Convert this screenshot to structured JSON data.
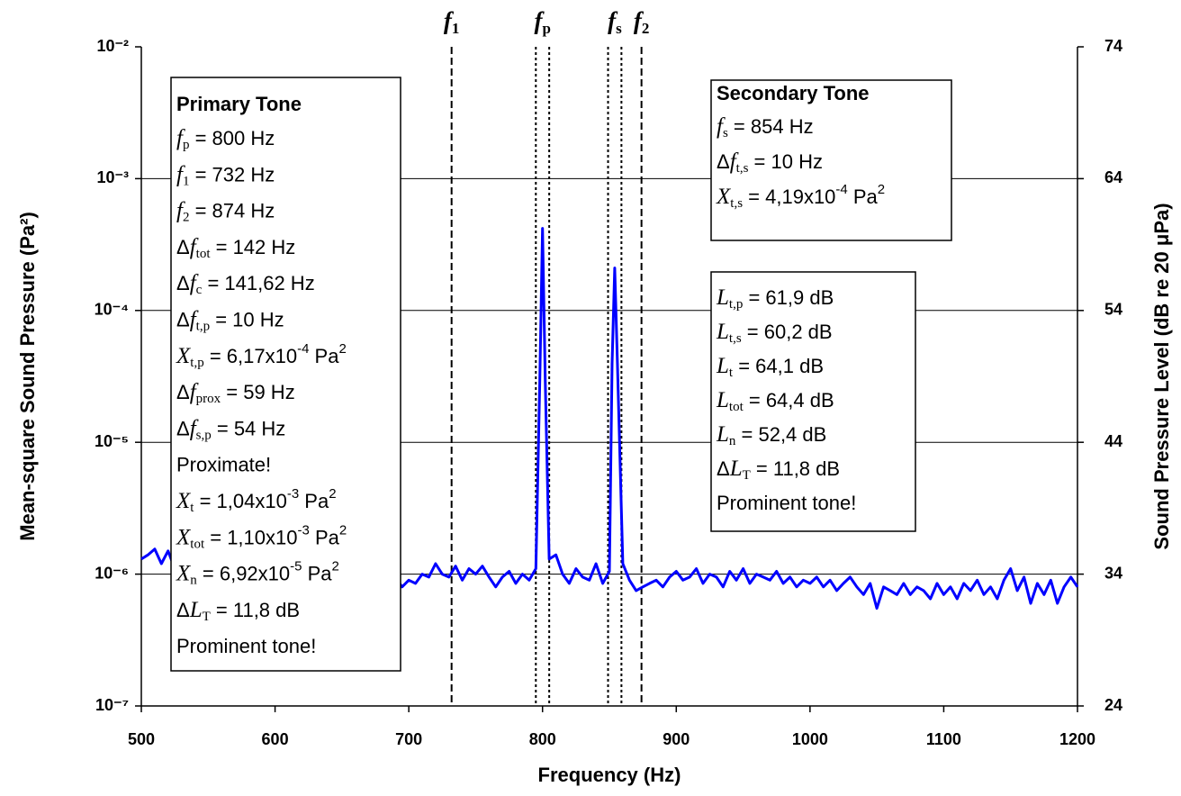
{
  "chart_data": {
    "type": "line",
    "log_scale": true,
    "grid": true,
    "color": "#0000ff",
    "xlabel": "Frequency (Hz)",
    "ylabel": "Mean-square Sound Pressure (Pa²)",
    "y2label": "Sound Pressure Level (dB re 20 μPa)",
    "xlim": [
      500,
      1200
    ],
    "xticks": [
      500,
      600,
      700,
      800,
      900,
      1000,
      1100,
      1200
    ],
    "ylim": [
      1e-07,
      0.01
    ],
    "yticks": [
      {
        "value": 1e-07,
        "label": "10⁻⁷"
      },
      {
        "value": 1e-06,
        "label": "10⁻⁶"
      },
      {
        "value": 1e-05,
        "label": "10⁻⁵"
      },
      {
        "value": 0.0001,
        "label": "10⁻⁴"
      },
      {
        "value": 0.001,
        "label": "10⁻³"
      },
      {
        "value": 0.01,
        "label": "10⁻²"
      }
    ],
    "y2lim": [
      24,
      74
    ],
    "y2ticks": [
      24,
      34,
      44,
      54,
      64,
      74
    ],
    "x": [
      500,
      505,
      510,
      515,
      520,
      525,
      530,
      535,
      540,
      545,
      550,
      555,
      560,
      565,
      570,
      575,
      580,
      585,
      590,
      595,
      600,
      605,
      610,
      615,
      620,
      625,
      630,
      635,
      640,
      645,
      650,
      655,
      660,
      665,
      670,
      675,
      680,
      685,
      690,
      695,
      700,
      705,
      710,
      715,
      720,
      725,
      730,
      735,
      740,
      745,
      750,
      755,
      760,
      765,
      770,
      775,
      780,
      785,
      790,
      795,
      798,
      800,
      802,
      805,
      810,
      815,
      820,
      825,
      830,
      835,
      840,
      845,
      850,
      852,
      854,
      856,
      860,
      865,
      870,
      875,
      880,
      885,
      890,
      895,
      900,
      905,
      910,
      915,
      920,
      925,
      930,
      935,
      940,
      945,
      950,
      955,
      960,
      965,
      970,
      975,
      980,
      985,
      990,
      995,
      1000,
      1005,
      1010,
      1015,
      1020,
      1025,
      1030,
      1035,
      1040,
      1045,
      1050,
      1055,
      1060,
      1065,
      1070,
      1075,
      1080,
      1085,
      1090,
      1095,
      1100,
      1105,
      1110,
      1115,
      1120,
      1125,
      1130,
      1135,
      1140,
      1145,
      1150,
      1155,
      1160,
      1165,
      1170,
      1175,
      1180,
      1185,
      1190,
      1195,
      1200
    ],
    "values": [
      1.3e-06,
      1.4e-06,
      1.55e-06,
      1.2e-06,
      1.5e-06,
      1.1e-06,
      1.25e-06,
      1e-06,
      1.15e-06,
      9.5e-07,
      1.1e-06,
      9e-07,
      1.2e-06,
      1e-06,
      8.5e-07,
      1.1e-06,
      9.5e-07,
      1.2e-06,
      9e-07,
      1.05e-06,
      1e-06,
      1.15e-06,
      9e-07,
      1.1e-06,
      9.5e-07,
      1.2e-06,
      8.5e-07,
      1e-06,
      1.1e-06,
      9e-07,
      1.05e-06,
      9.5e-07,
      1.2e-06,
      9e-07,
      1.1e-06,
      1e-06,
      8.5e-07,
      1.15e-06,
      9.5e-07,
      8e-07,
      9e-07,
      8.5e-07,
      1e-06,
      9.5e-07,
      1.2e-06,
      1e-06,
      9.5e-07,
      1.15e-06,
      9e-07,
      1.1e-06,
      1e-06,
      1.15e-06,
      9.5e-07,
      8e-07,
      9.5e-07,
      1.05e-06,
      8.5e-07,
      1e-06,
      9e-07,
      1.1e-06,
      3e-05,
      0.00042,
      3e-05,
      1.3e-06,
      1.4e-06,
      1e-06,
      8.5e-07,
      1.1e-06,
      9.5e-07,
      9e-07,
      1.2e-06,
      8.5e-07,
      1.05e-06,
      4e-05,
      0.00021,
      4e-05,
      1.2e-06,
      9e-07,
      7.5e-07,
      8e-07,
      8.5e-07,
      9e-07,
      8e-07,
      9.5e-07,
      1.05e-06,
      9e-07,
      9.5e-07,
      1.1e-06,
      8.5e-07,
      1e-06,
      9.5e-07,
      8e-07,
      1.05e-06,
      9e-07,
      1.1e-06,
      8.5e-07,
      1e-06,
      9.5e-07,
      9e-07,
      1.05e-06,
      8.5e-07,
      9.5e-07,
      8e-07,
      9e-07,
      8.5e-07,
      9.5e-07,
      8e-07,
      9e-07,
      7.5e-07,
      8.5e-07,
      9.5e-07,
      8e-07,
      7e-07,
      8.5e-07,
      5.5e-07,
      8e-07,
      7.5e-07,
      7e-07,
      8.5e-07,
      7e-07,
      8e-07,
      7.5e-07,
      6.5e-07,
      8.5e-07,
      7e-07,
      8e-07,
      6.5e-07,
      8.5e-07,
      7.5e-07,
      9e-07,
      7e-07,
      8e-07,
      6.5e-07,
      9e-07,
      1.1e-06,
      7.5e-07,
      9.5e-07,
      6e-07,
      8.5e-07,
      7e-07,
      9e-07,
      6e-07,
      8e-07,
      9.5e-07,
      8e-07
    ],
    "vlines": [
      {
        "x": 732,
        "style": "dashed"
      },
      {
        "x": 795,
        "style": "dotted"
      },
      {
        "x": 805,
        "style": "dotted"
      },
      {
        "x": 849,
        "style": "dotted"
      },
      {
        "x": 859,
        "style": "dotted"
      },
      {
        "x": 874,
        "style": "dashed"
      }
    ],
    "markers": [
      {
        "x": 732,
        "label": [
          {
            "i": "f"
          },
          {
            "sub": "1"
          }
        ]
      },
      {
        "x": 800,
        "label": [
          {
            "i": "f"
          },
          {
            "sub": "p"
          }
        ]
      },
      {
        "x": 854,
        "label": [
          {
            "i": "f"
          },
          {
            "sub": "s"
          }
        ]
      },
      {
        "x": 874,
        "label": [
          {
            "i": "f"
          },
          {
            "sub": "2"
          }
        ]
      }
    ],
    "annotations": [
      {
        "title": "Primary Tone",
        "lines": [
          [
            {
              "i": "f"
            },
            {
              "sub": "p"
            },
            " = 800 Hz"
          ],
          [
            {
              "i": "f"
            },
            {
              "sub": "1"
            },
            " = 732 Hz"
          ],
          [
            {
              "i": "f"
            },
            {
              "sub": "2"
            },
            " = 874 Hz"
          ],
          [
            "Δ",
            {
              "i": "f"
            },
            {
              "sub": "tot"
            },
            " = 142 Hz"
          ],
          [
            "Δ",
            {
              "i": "f"
            },
            {
              "sub": "c"
            },
            " = 141,62 Hz"
          ],
          [
            "Δ",
            {
              "i": "f"
            },
            {
              "sub": "t,p"
            },
            " = 10 Hz"
          ],
          [
            {
              "i": "X"
            },
            {
              "sub": "t,p"
            },
            " = 6,17x10",
            {
              "sup": "-4"
            },
            " Pa",
            {
              "sup": "2"
            }
          ],
          [
            "Δ",
            {
              "i": "f"
            },
            {
              "sub": "prox"
            },
            " = 59 Hz"
          ],
          [
            "Δ",
            {
              "i": "f"
            },
            {
              "sub": "s,p"
            },
            " = 54 Hz"
          ],
          [
            "Proximate!"
          ],
          [
            {
              "i": "X"
            },
            {
              "sub": "t"
            },
            " = 1,04x10",
            {
              "sup": "-3"
            },
            " Pa",
            {
              "sup": "2"
            }
          ],
          [
            {
              "i": "X"
            },
            {
              "sub": "tot"
            },
            " = 1,10x10",
            {
              "sup": "-3"
            },
            " Pa",
            {
              "sup": "2"
            }
          ],
          [
            {
              "i": "X"
            },
            {
              "sub": "n"
            },
            " = 6,92x10",
            {
              "sup": "-5"
            },
            " Pa",
            {
              "sup": "2"
            }
          ],
          [
            "Δ",
            {
              "i": "L"
            },
            {
              "sub": "T"
            },
            " = 11,8 dB"
          ],
          [
            "Prominent tone!"
          ]
        ]
      },
      {
        "title": "Secondary Tone",
        "lines": [
          [
            {
              "i": "f"
            },
            {
              "sub": "s"
            },
            " = 854 Hz"
          ],
          [
            "Δ",
            {
              "i": "f"
            },
            {
              "sub": "t,s"
            },
            " = 10 Hz"
          ],
          [
            {
              "i": "X"
            },
            {
              "sub": "t,s"
            },
            " = 4,19x10",
            {
              "sup": "-4"
            },
            " Pa",
            {
              "sup": "2"
            }
          ]
        ]
      },
      {
        "lines": [
          [
            {
              "i": "L"
            },
            {
              "sub": "t,p"
            },
            " = 61,9 dB"
          ],
          [
            {
              "i": "L"
            },
            {
              "sub": "t,s"
            },
            " = 60,2 dB"
          ],
          [
            {
              "i": "L"
            },
            {
              "sub": "t"
            },
            " = 64,1 dB"
          ],
          [
            {
              "i": "L"
            },
            {
              "sub": "tot"
            },
            " = 64,4 dB"
          ],
          [
            {
              "i": "L"
            },
            {
              "sub": "n"
            },
            " = 52,4 dB"
          ],
          [
            "Δ",
            {
              "i": "L"
            },
            {
              "sub": "T"
            },
            " = 11,8 dB"
          ],
          [
            "Prominent tone!"
          ]
        ]
      }
    ]
  }
}
